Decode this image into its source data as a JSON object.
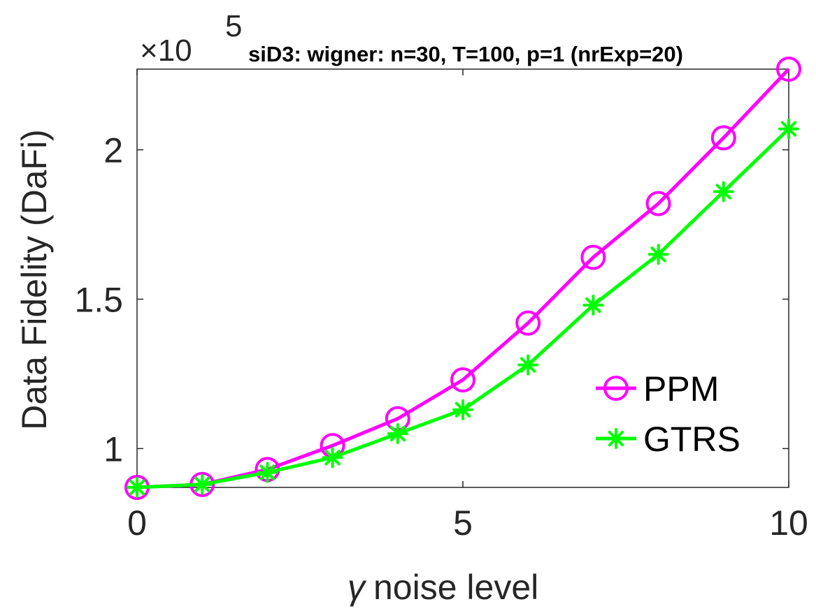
{
  "chart_data": {
    "type": "line",
    "title": "siD3: wigner: n=30, T=100, p=1 (nrExp=20)",
    "xlabel_symbol": "γ",
    "xlabel": "noise level",
    "ylabel": "Data Fidelity (DaFi)",
    "y_multiplier": {
      "base": "×10",
      "exponent": "5"
    },
    "xlim": [
      0,
      10
    ],
    "ylim": [
      0.87,
      2.27
    ],
    "xticks": [
      0,
      5,
      10
    ],
    "xtick_labels": [
      "0",
      "5",
      "10"
    ],
    "yticks": [
      1,
      1.5,
      2
    ],
    "ytick_labels": [
      "1",
      "1.5",
      "2"
    ],
    "grid": false,
    "legend_position": "bottom-right",
    "x": [
      0,
      1,
      2,
      3,
      4,
      5,
      6,
      7,
      8,
      9,
      10
    ],
    "series": [
      {
        "name": "PPM",
        "color": "#ff00ff",
        "marker": "circle",
        "values": [
          0.87,
          0.88,
          0.93,
          1.01,
          1.1,
          1.23,
          1.42,
          1.64,
          1.82,
          2.04,
          2.27
        ]
      },
      {
        "name": "GTRS",
        "color": "#00ff00",
        "marker": "asterisk",
        "values": [
          0.87,
          0.88,
          0.92,
          0.97,
          1.05,
          1.13,
          1.28,
          1.48,
          1.65,
          1.86,
          2.07
        ]
      }
    ]
  }
}
